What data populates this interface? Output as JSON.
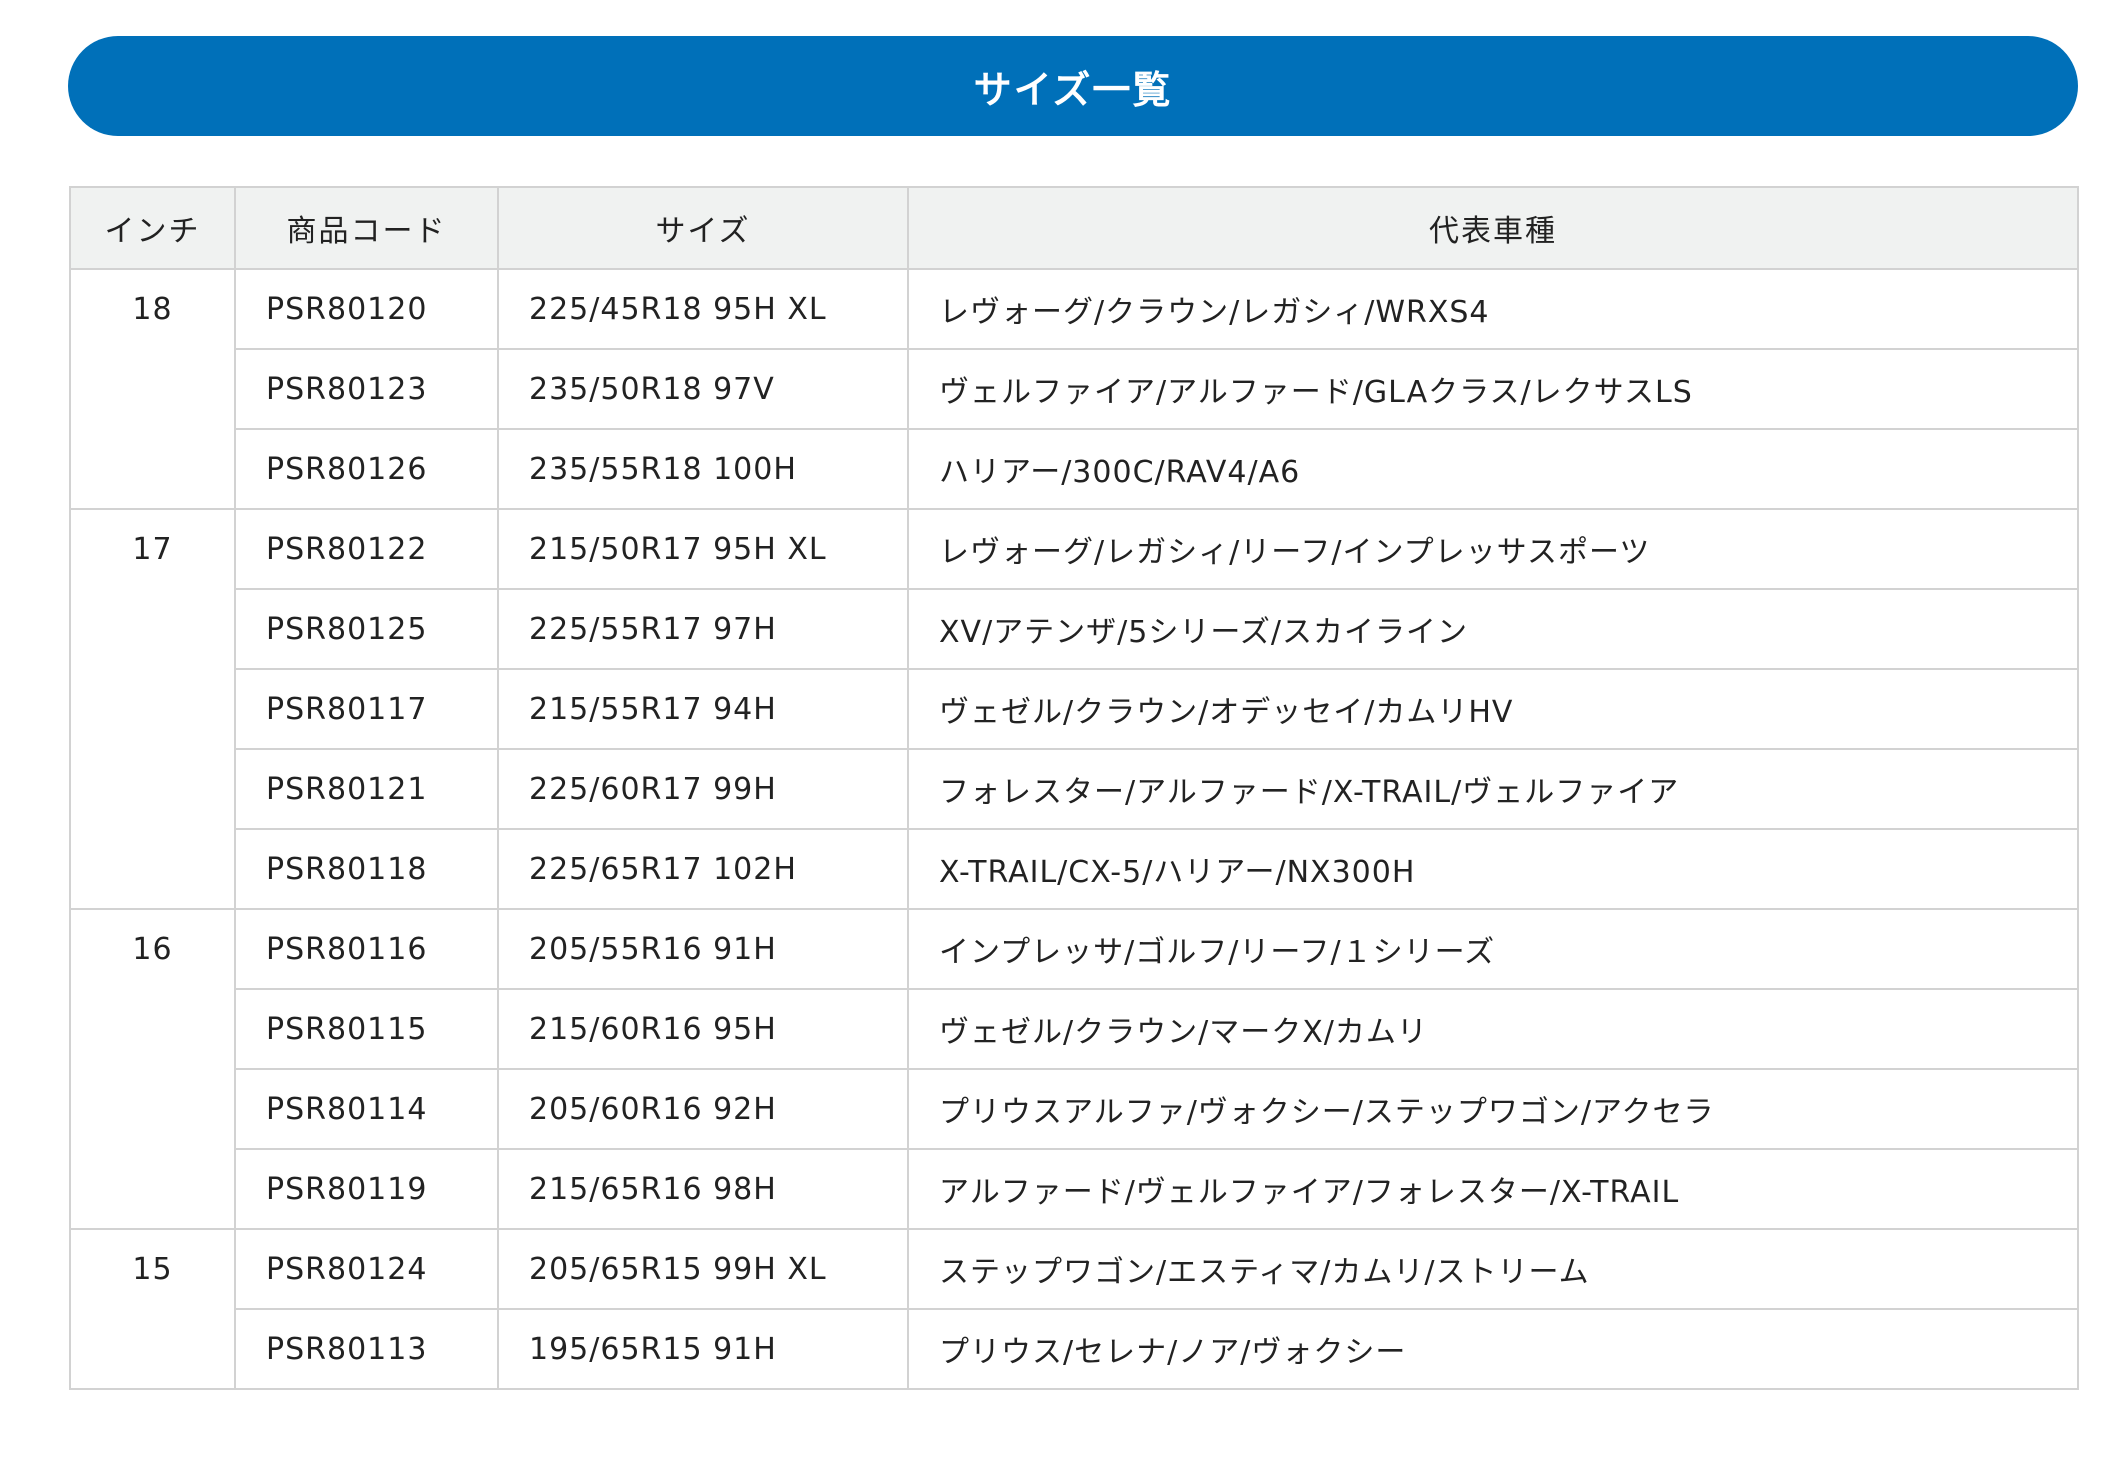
{
  "title": "サイズ一覧",
  "colors": {
    "banner": "#0070b9",
    "header_bg": "#f0f2f1",
    "border": "#d2d2d2"
  },
  "table": {
    "headers": [
      "インチ",
      "商品コード",
      "サイズ",
      "代表車種"
    ],
    "groups": [
      {
        "inch": "18",
        "rows": [
          {
            "code": "PSR80120",
            "size": "225/45R18 95H XL",
            "cars": "レヴォーグ/クラウン/レガシィ/WRXS4"
          },
          {
            "code": "PSR80123",
            "size": "235/50R18 97V",
            "cars": "ヴェルファイア/アルファード/GLAクラス/レクサスLS"
          },
          {
            "code": "PSR80126",
            "size": "235/55R18 100H",
            "cars": "ハリアー/300C/RAV4/A6"
          }
        ]
      },
      {
        "inch": "17",
        "rows": [
          {
            "code": "PSR80122",
            "size": "215/50R17 95H XL",
            "cars": "レヴォーグ/レガシィ/リーフ/インプレッサスポーツ"
          },
          {
            "code": "PSR80125",
            "size": "225/55R17 97H",
            "cars": "XV/アテンザ/5シリーズ/スカイライン"
          },
          {
            "code": "PSR80117",
            "size": "215/55R17 94H",
            "cars": "ヴェゼル/クラウン/オデッセイ/カムリHV"
          },
          {
            "code": "PSR80121",
            "size": "225/60R17 99H",
            "cars": "フォレスター/アルファード/X-TRAIL/ヴェルファイア"
          },
          {
            "code": "PSR80118",
            "size": "225/65R17 102H",
            "cars": "X-TRAIL/CX-5/ハリアー/NX300H"
          }
        ]
      },
      {
        "inch": "16",
        "rows": [
          {
            "code": "PSR80116",
            "size": "205/55R16 91H",
            "cars": "インプレッサ/ゴルフ/リーフ/１シリーズ"
          },
          {
            "code": "PSR80115",
            "size": "215/60R16 95H",
            "cars": "ヴェゼル/クラウン/マークX/カムリ"
          },
          {
            "code": "PSR80114",
            "size": "205/60R16 92H",
            "cars": "プリウスアルファ/ヴォクシー/ステップワゴン/アクセラ"
          },
          {
            "code": "PSR80119",
            "size": "215/65R16 98H",
            "cars": "アルファード/ヴェルファイア/フォレスター/X-TRAIL"
          }
        ]
      },
      {
        "inch": "15",
        "rows": [
          {
            "code": "PSR80124",
            "size": "205/65R15 99H XL",
            "cars": "ステップワゴン/エスティマ/カムリ/ストリーム"
          },
          {
            "code": "PSR80113",
            "size": "195/65R15 91H",
            "cars": "プリウス/セレナ/ノア/ヴォクシー"
          }
        ]
      }
    ]
  }
}
